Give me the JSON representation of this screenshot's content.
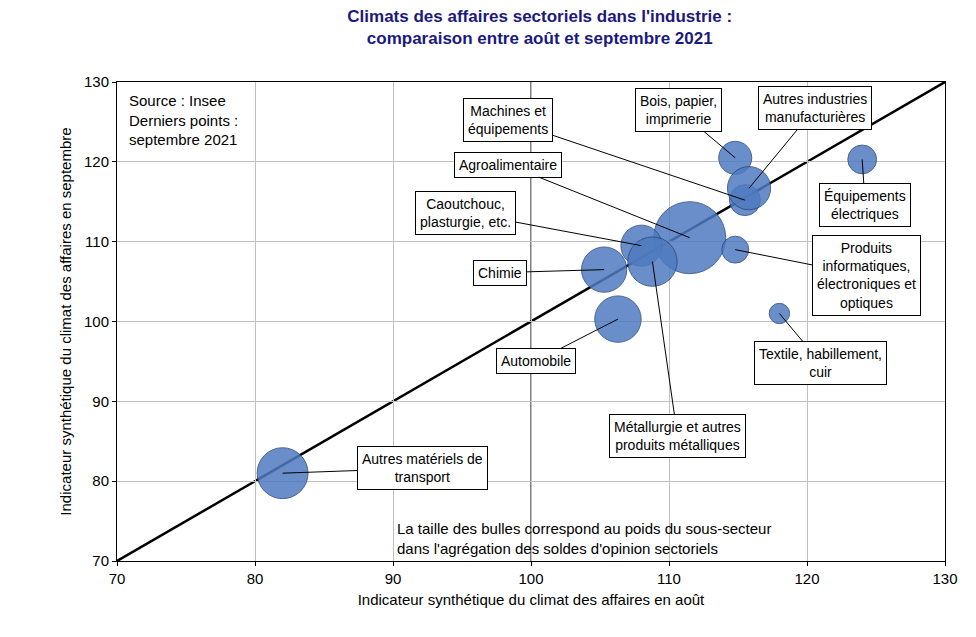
{
  "chart_data": {
    "type": "bubble",
    "title": [
      "Climats des affaires sectoriels dans l'industrie :",
      "comparaison entre août et septembre 2021"
    ],
    "x_label": "Indicateur synthétique du climat des affaires en août",
    "y_label": "Indicateur synthétique du climat des affaires en septembre",
    "source": [
      "Source : Insee",
      "Derniers points :",
      "septembre 2021"
    ],
    "note": [
      "La taille des bulles correspond au poids du sous-secteur",
      "dans l'agrégation des soldes d'opinion sectoriels"
    ],
    "labels": [
      "Machines et\néquipements",
      "Bois, papier,\nimprimerie",
      "Autres industries\nmanufacturières",
      "Agroalimentaire",
      "Caoutchouc,\nplasturgie, etc.",
      "Chimie",
      "Équipements\nélectriques",
      "Produits\ninformatiques,\nélectroniques et\noptiques",
      "Textile, habillement,\ncuir",
      "Automobile",
      "Métallurgie et autres\nproduits métalliques",
      "Autres matériels de\ntransport"
    ],
    "x": [
      115.5,
      114.8,
      115.8,
      111.5,
      108.0,
      105.3,
      124.0,
      114.8,
      118.0,
      106.3,
      108.8,
      82.0
    ],
    "y": [
      115.2,
      120.5,
      116.7,
      110.5,
      109.5,
      106.5,
      120.3,
      109.0,
      101.0,
      100.3,
      107.5,
      81.0
    ],
    "sizes": [
      3.7,
      4.2,
      7.2,
      20,
      6.5,
      7.9,
      3.2,
      2.8,
      1.6,
      8.3,
      9.4,
      10
    ],
    "color": "#4f7bc0",
    "xlim": [
      70,
      130
    ],
    "ylim": [
      70,
      130
    ],
    "xticks": [
      70,
      80,
      90,
      100,
      110,
      120,
      130
    ],
    "yticks": [
      70,
      80,
      90,
      100,
      110,
      120,
      130
    ],
    "xlines": [
      100
    ],
    "ylines": [
      100
    ],
    "grid": true
  }
}
